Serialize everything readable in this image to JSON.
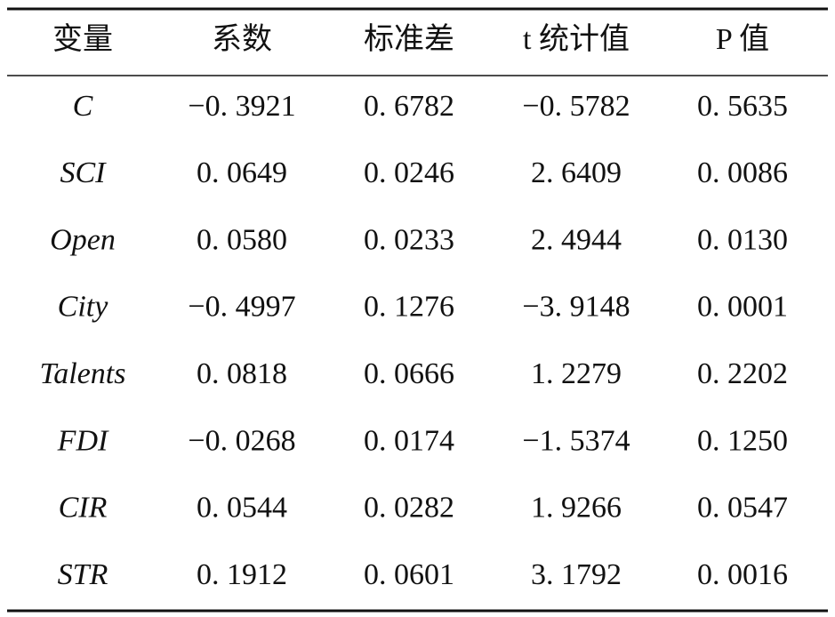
{
  "table": {
    "header": [
      "变量",
      "系数",
      "标准差",
      "t 统计值",
      "P 值"
    ],
    "rows": [
      [
        "C",
        "−0. 3921",
        "0. 6782",
        "−0. 5782",
        "0. 5635"
      ],
      [
        "SCI",
        "0. 0649",
        "0. 0246",
        "2. 6409",
        "0. 0086"
      ],
      [
        "Open",
        "0. 0580",
        "0. 0233",
        "2. 4944",
        "0. 0130"
      ],
      [
        "City",
        "−0. 4997",
        "0. 1276",
        "−3. 9148",
        "0. 0001"
      ],
      [
        "Talents",
        "0. 0818",
        "0. 0666",
        "1. 2279",
        "0. 2202"
      ],
      [
        "FDI",
        "−0. 0268",
        "0. 0174",
        "−1. 5374",
        "0. 1250"
      ],
      [
        "CIR",
        "0. 0544",
        "0. 0282",
        "1. 9266",
        "0. 0547"
      ],
      [
        "STR",
        "0. 1912",
        "0. 0601",
        "3. 1792",
        "0. 0016"
      ]
    ]
  }
}
